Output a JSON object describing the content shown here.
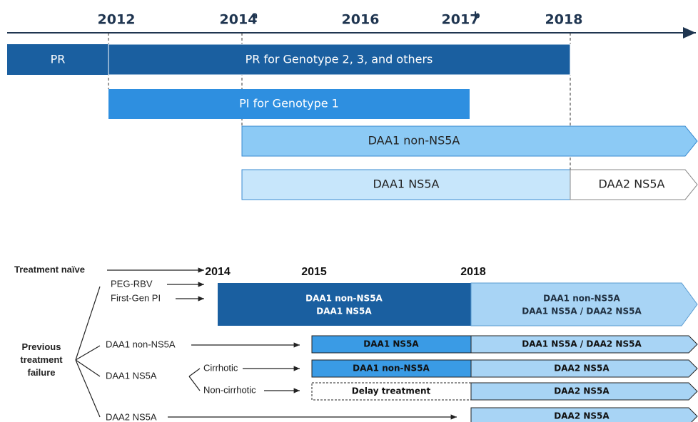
{
  "timeline": {
    "years": [
      "2012",
      "2014",
      "2016",
      "2017",
      "2018"
    ],
    "notes": [
      "a",
      "b"
    ],
    "bars": [
      "PR",
      "PR for Genotype 2, 3, and others",
      "PI for Genotype 1",
      "DAA1 non-NS5A",
      "DAA1 NS5A",
      "DAA2 NS5A"
    ]
  },
  "flowchart": {
    "years": [
      "2014",
      "2015",
      "2018"
    ],
    "groups": [
      "Treatment naïve",
      "Previous treatment failure"
    ],
    "prior": [
      "PEG-RBV",
      "First-Gen PI",
      "DAA1 non-NS5A",
      "DAA1 NS5A",
      "DAA2 NS5A"
    ],
    "subgroups": [
      "Cirrhotic",
      "Non-cirrhotic"
    ],
    "blocks": [
      "DAA1 non-NS5A",
      "DAA1 NS5A",
      "DAA1 non-NS5A",
      "DAA1 NS5A / DAA2 NS5A",
      "DAA1 NS5A",
      "DAA1 NS5A / DAA2 NS5A",
      "DAA1 non-NS5A",
      "DAA2 NS5A",
      "Delay treatment",
      "DAA2 NS5A",
      "DAA2 NS5A"
    ]
  }
}
